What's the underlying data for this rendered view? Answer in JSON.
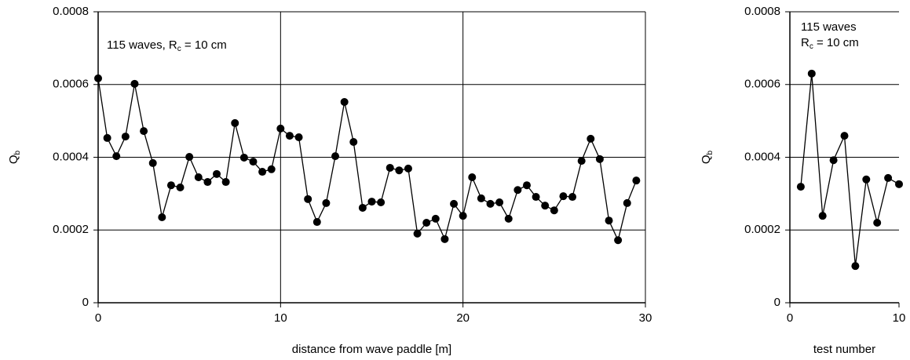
{
  "chart_data": [
    {
      "type": "line",
      "annotation": {
        "text": "115 waves, R",
        "sub": "c",
        "tail": " = 10 cm"
      },
      "x_label": "distance from wave paddle [m]",
      "y_label": {
        "text": "Q",
        "sub": "b"
      },
      "x": [
        0,
        0.5,
        1,
        1.5,
        2,
        2.5,
        3,
        3.5,
        4,
        4.5,
        5,
        5.5,
        6,
        6.5,
        7,
        7.5,
        8,
        8.5,
        9,
        9.5,
        10,
        10.5,
        11,
        11.5,
        12,
        12.5,
        13,
        13.5,
        14,
        14.5,
        15,
        15.5,
        16,
        16.5,
        17,
        17.5,
        18,
        18.5,
        19,
        19.5,
        20,
        20.5,
        21,
        21.5,
        22,
        22.5,
        23,
        23.5,
        24,
        24.5,
        25,
        25.5,
        26,
        26.5,
        27,
        27.5,
        28,
        28.5,
        29,
        29.5
      ],
      "series": [
        {
          "color": "#000000",
          "values": [
            0.000617,
            0.000453,
            0.000403,
            0.000457,
            0.000602,
            0.000472,
            0.000384,
            0.000235,
            0.000323,
            0.000317,
            0.000401,
            0.000345,
            0.000332,
            0.000354,
            0.000332,
            0.000494,
            0.000399,
            0.000388,
            0.00036,
            0.000367,
            0.000479,
            0.000459,
            0.000455,
            0.000285,
            0.000222,
            0.000274,
            0.000403,
            0.000552,
            0.000442,
            0.000261,
            0.000278,
            0.000276,
            0.000371,
            0.000364,
            0.000369,
            0.00019,
            0.00022,
            0.000231,
            0.000175,
            0.000272,
            0.000239,
            0.000345,
            0.000287,
            0.000272,
            0.000276,
            0.000231,
            0.00031,
            0.000323,
            0.000291,
            0.000267,
            0.000254,
            0.000293,
            0.000291,
            0.00039,
            0.000451,
            0.000395,
            0.000226,
            0.000172,
            0.000274,
            0.000336
          ]
        }
      ],
      "xlim": [
        0,
        30
      ],
      "xticks": [
        0,
        10,
        20,
        30
      ],
      "ylim": [
        0,
        0.0008
      ],
      "yticks": [
        0,
        0.0002,
        0.0004,
        0.0006,
        0.0008
      ],
      "grid_x": true,
      "grid_y": true
    },
    {
      "type": "line",
      "annotation": {
        "text": "115 waves",
        "line2": "R",
        "sub": "c",
        "tail": " = 10 cm"
      },
      "x_label": "test number",
      "y_label": {
        "text": "Q",
        "sub": "b"
      },
      "x": [
        1,
        2,
        3,
        4,
        5,
        6,
        7,
        8,
        9,
        10
      ],
      "series": [
        {
          "color": "#000000",
          "values": [
            0.000319,
            0.00063,
            0.000239,
            0.000392,
            0.000459,
            0.000101,
            0.000339,
            0.00022,
            0.000343,
            0.000326
          ]
        }
      ],
      "xlim": [
        0,
        10
      ],
      "xticks": [
        0,
        10
      ],
      "ylim": [
        0,
        0.0008
      ],
      "yticks": [
        0,
        0.0002,
        0.0004,
        0.0006,
        0.0008
      ],
      "grid_x": false,
      "grid_y": true
    }
  ]
}
